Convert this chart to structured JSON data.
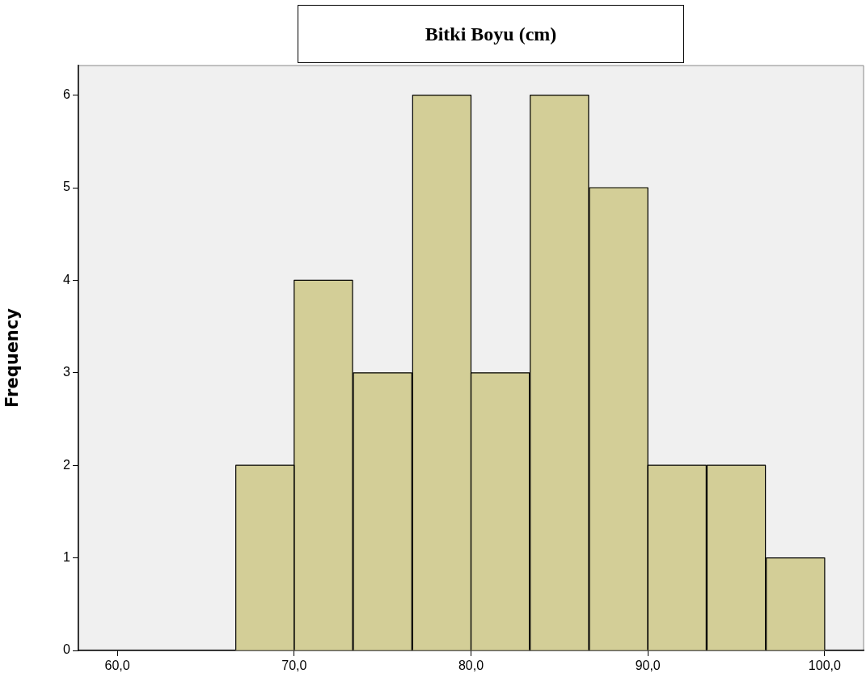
{
  "chart_data": {
    "type": "histogram",
    "title": "Bitki Boyu (cm)",
    "ylabel": "Frequency",
    "bins": [
      66.7,
      70,
      73.3,
      76.7,
      80,
      83.3,
      86.7,
      90,
      93.3,
      96.7,
      100
    ],
    "values": [
      2,
      4,
      3,
      6,
      3,
      6,
      5,
      2,
      2,
      1
    ],
    "color": "#d3ce97",
    "xlim": [
      57.8,
      102.2
    ],
    "xticks": [
      {
        "value": 60,
        "label": "60,0"
      },
      {
        "value": 70,
        "label": "70,0"
      },
      {
        "value": 80,
        "label": "80,0"
      },
      {
        "value": 90,
        "label": "90,0"
      },
      {
        "value": 100,
        "label": "100,0"
      }
    ],
    "ylim": [
      0,
      6.32
    ],
    "yticks": [
      0,
      1,
      2,
      3,
      4,
      5,
      6
    ],
    "grid": false
  }
}
